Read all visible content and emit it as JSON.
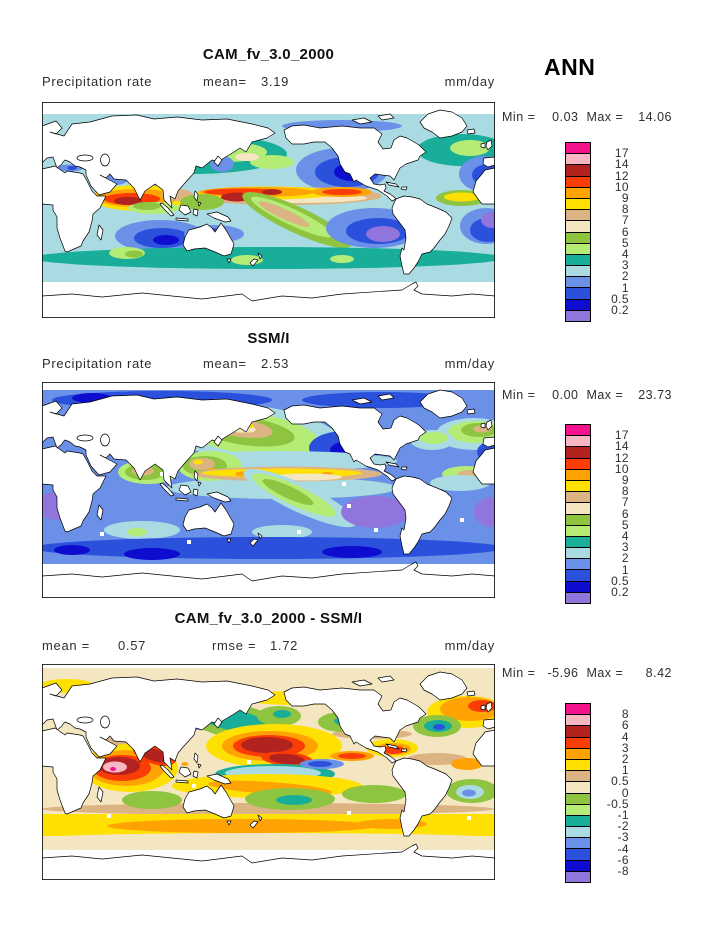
{
  "page": {
    "season": "ANN",
    "background": "#ffffff"
  },
  "palette": {
    "colors": [
      "#F5138D",
      "#F9B7C4",
      "#B2221F",
      "#FA3C05",
      "#FFA305",
      "#FFE003",
      "#DCB382",
      "#F4E6C0",
      "#8EC440",
      "#B5EC76",
      "#18AE9A",
      "#AADBE2",
      "#6A90E8",
      "#2B50DC",
      "#0D0CCF",
      "#9076DC"
    ],
    "precip_levels": [
      "17",
      "14",
      "12",
      "10",
      "9",
      "8",
      "7",
      "6",
      "5",
      "4",
      "3",
      "2",
      "1",
      "0.5",
      "0.2"
    ],
    "diff_levels": [
      "8",
      "6",
      "4",
      "3",
      "2",
      "1",
      "0.5",
      "0",
      "-0.5",
      "-1",
      "-2",
      "-3",
      "-4",
      "-6",
      "-8"
    ]
  },
  "panels": [
    {
      "title": "CAM_fv_3.0_2000",
      "left_label": "Precipitation rate",
      "mean_label": "mean=",
      "mean_value": "3.19",
      "units": "mm/day",
      "min_label": "Min =",
      "min_value": "0.03",
      "max_label": "Max =",
      "max_value": "14.06"
    },
    {
      "title": "SSM/I",
      "left_label": "Precipitation rate",
      "mean_label": "mean=",
      "mean_value": "2.53",
      "units": "mm/day",
      "min_label": "Min =",
      "min_value": "0.00",
      "max_label": "Max =",
      "max_value": "23.73"
    },
    {
      "title": "CAM_fv_3.0_2000 - SSM/I",
      "mean_label": "mean =",
      "mean_value": "0.57",
      "rmse_label": "rmse =",
      "rmse_value": "1.72",
      "units": "mm/day",
      "min_label": "Min =",
      "min_value": "-5.96",
      "max_label": "Max =",
      "max_value": "8.42"
    }
  ],
  "chart_data": [
    {
      "type": "heatmap",
      "title": "CAM_fv_3.0_2000",
      "variable": "Precipitation rate",
      "units": "mm/day",
      "season": "ANN",
      "stats": {
        "mean": 3.19,
        "min": 0.03,
        "max": 14.06
      },
      "legend_levels": [
        17,
        14,
        12,
        10,
        9,
        8,
        7,
        6,
        5,
        4,
        3,
        2,
        1,
        0.5,
        0.2
      ],
      "legend_colors": [
        "#F5138D",
        "#F9B7C4",
        "#B2221F",
        "#FA3C05",
        "#FFA305",
        "#FFE003",
        "#DCB382",
        "#F4E6C0",
        "#8EC440",
        "#B5EC76",
        "#18AE9A",
        "#AADBE2",
        "#6A90E8",
        "#2B50DC",
        "#0D0CCF",
        "#9076DC"
      ],
      "legend_position": "right",
      "projection": "global cylindrical equidistant, 0-360E, land masked white"
    },
    {
      "type": "heatmap",
      "title": "SSM/I",
      "variable": "Precipitation rate",
      "units": "mm/day",
      "season": "ANN",
      "stats": {
        "mean": 2.53,
        "min": 0.0,
        "max": 23.73
      },
      "legend_levels": [
        17,
        14,
        12,
        10,
        9,
        8,
        7,
        6,
        5,
        4,
        3,
        2,
        1,
        0.5,
        0.2
      ],
      "legend_colors": [
        "#F5138D",
        "#F9B7C4",
        "#B2221F",
        "#FA3C05",
        "#FFA305",
        "#FFE003",
        "#DCB382",
        "#F4E6C0",
        "#8EC440",
        "#B5EC76",
        "#18AE9A",
        "#AADBE2",
        "#6A90E8",
        "#2B50DC",
        "#0D0CCF",
        "#9076DC"
      ],
      "legend_position": "right",
      "projection": "global cylindrical equidistant, 0-360E, ocean-only data"
    },
    {
      "type": "heatmap",
      "title": "CAM_fv_3.0_2000 - SSM/I",
      "variable": "Precipitation rate difference",
      "units": "mm/day",
      "season": "ANN",
      "stats": {
        "mean": 0.57,
        "rmse": 1.72,
        "min": -5.96,
        "max": 8.42
      },
      "legend_levels": [
        8,
        6,
        4,
        3,
        2,
        1,
        0.5,
        0,
        -0.5,
        -1,
        -2,
        -3,
        -4,
        -6,
        -8
      ],
      "legend_colors": [
        "#F5138D",
        "#F9B7C4",
        "#B2221F",
        "#FA3C05",
        "#FFA305",
        "#FFE003",
        "#DCB382",
        "#F4E6C0",
        "#8EC440",
        "#B5EC76",
        "#18AE9A",
        "#AADBE2",
        "#6A90E8",
        "#2B50DC",
        "#0D0CCF",
        "#9076DC"
      ],
      "legend_position": "right",
      "projection": "global cylindrical equidistant, 0-360E, ocean-only data"
    }
  ]
}
